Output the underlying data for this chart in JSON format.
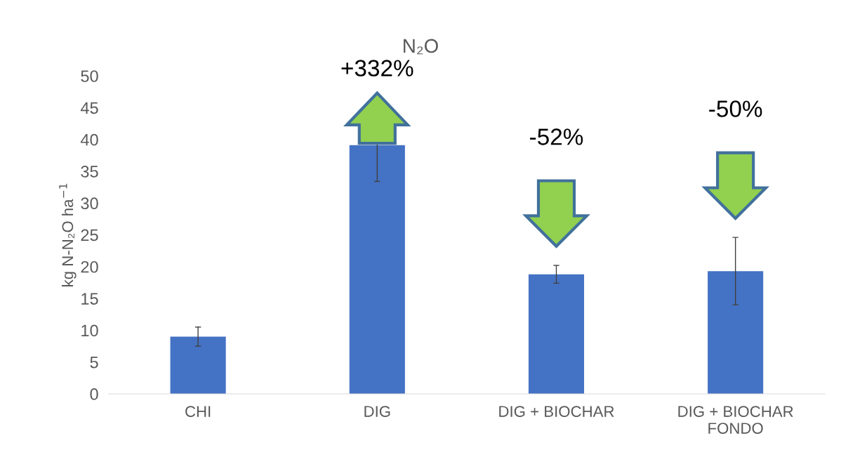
{
  "chart_data": {
    "type": "bar",
    "title": "N₂O",
    "ylabel": "kg N-N₂O ha$^{−1}$",
    "categories": [
      "CHI",
      "DIG",
      "DIG + BIOCHAR",
      "DIG + BIOCHAR\nFONDO"
    ],
    "values": [
      9.0,
      39.1,
      18.8,
      19.3
    ],
    "errors": [
      1.5,
      5.7,
      1.4,
      5.3
    ],
    "color": "#4472c4",
    "ylim": [
      0,
      50
    ],
    "yticks": [
      0,
      5,
      10,
      15,
      20,
      25,
      30,
      35,
      40,
      45,
      50
    ],
    "grid": false,
    "legend": false,
    "annotations": [
      "+332%",
      "-52%",
      "-50%"
    ]
  }
}
